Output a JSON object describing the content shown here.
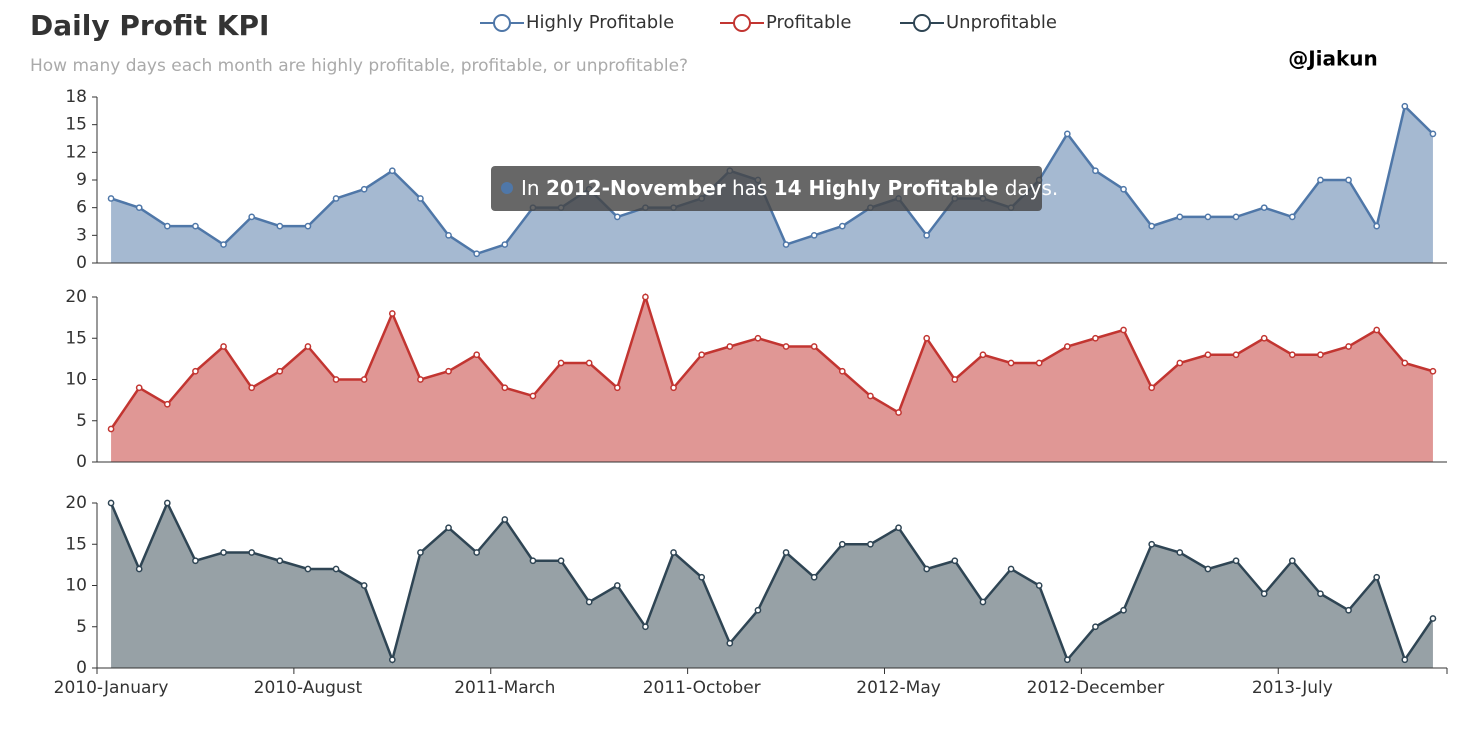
{
  "header": {
    "title": "Daily Profit KPI",
    "subtitle": "How many days each month are highly profitable, profitable, or unprofitable?",
    "author": "@Jiakun"
  },
  "tooltip": {
    "parts": [
      "In",
      "2012-November",
      "has",
      "14 Highly Profitable",
      "days."
    ]
  },
  "chart_data": [
    {
      "type": "line",
      "area": true,
      "ylim": [
        0,
        18
      ],
      "yticks": [
        0,
        3,
        6,
        9,
        12,
        15,
        18
      ],
      "series": [
        {
          "name": "Highly Profitable",
          "color": "#4f77a8",
          "area_color": "#a5b9d1",
          "values": [
            7,
            6,
            4,
            4,
            2,
            5,
            4,
            4,
            7,
            8,
            10,
            7,
            3,
            1,
            2,
            6,
            6,
            8,
            5,
            6,
            6,
            7,
            10,
            9,
            2,
            3,
            4,
            6,
            7,
            3,
            7,
            7,
            6,
            9,
            14,
            10,
            8,
            4,
            5,
            5,
            5,
            6,
            5,
            9,
            9,
            4,
            17,
            14
          ]
        }
      ]
    },
    {
      "type": "line",
      "area": true,
      "ylim": [
        0,
        20
      ],
      "yticks": [
        0,
        5,
        10,
        15,
        20
      ],
      "series": [
        {
          "name": "Profitable",
          "color": "#c23531",
          "area_color": "#e09795",
          "values": [
            4,
            9,
            7,
            11,
            14,
            9,
            11,
            14,
            10,
            10,
            18,
            10,
            11,
            13,
            9,
            8,
            12,
            12,
            9,
            20,
            9,
            13,
            14,
            15,
            14,
            14,
            11,
            8,
            6,
            15,
            10,
            13,
            12,
            12,
            14,
            15,
            16,
            9,
            12,
            13,
            13,
            15,
            13,
            13,
            14,
            16,
            12,
            11
          ]
        }
      ]
    },
    {
      "type": "line",
      "area": true,
      "ylim": [
        0,
        20
      ],
      "yticks": [
        0,
        5,
        10,
        15,
        20
      ],
      "categories": [
        "2010-January",
        null,
        null,
        null,
        null,
        null,
        null,
        "2010-August",
        null,
        null,
        null,
        null,
        null,
        null,
        "2011-March",
        null,
        null,
        null,
        null,
        null,
        null,
        "2011-October",
        null,
        null,
        null,
        null,
        null,
        null,
        "2012-May",
        null,
        null,
        null,
        null,
        null,
        null,
        "2012-December",
        null,
        null,
        null,
        null,
        null,
        null,
        "2013-July",
        null,
        null,
        null,
        null,
        null
      ],
      "series": [
        {
          "name": "Unprofitable",
          "color": "#2f4554",
          "area_color": "#97a1a6",
          "values": [
            20,
            12,
            20,
            13,
            14,
            14,
            13,
            12,
            12,
            10,
            1,
            14,
            17,
            14,
            18,
            13,
            13,
            8,
            10,
            5,
            14,
            11,
            3,
            7,
            14,
            11,
            15,
            15,
            17,
            12,
            13,
            8,
            12,
            10,
            1,
            5,
            7,
            15,
            14,
            12,
            13,
            9,
            13,
            9,
            7,
            11,
            1,
            6
          ]
        }
      ]
    }
  ]
}
